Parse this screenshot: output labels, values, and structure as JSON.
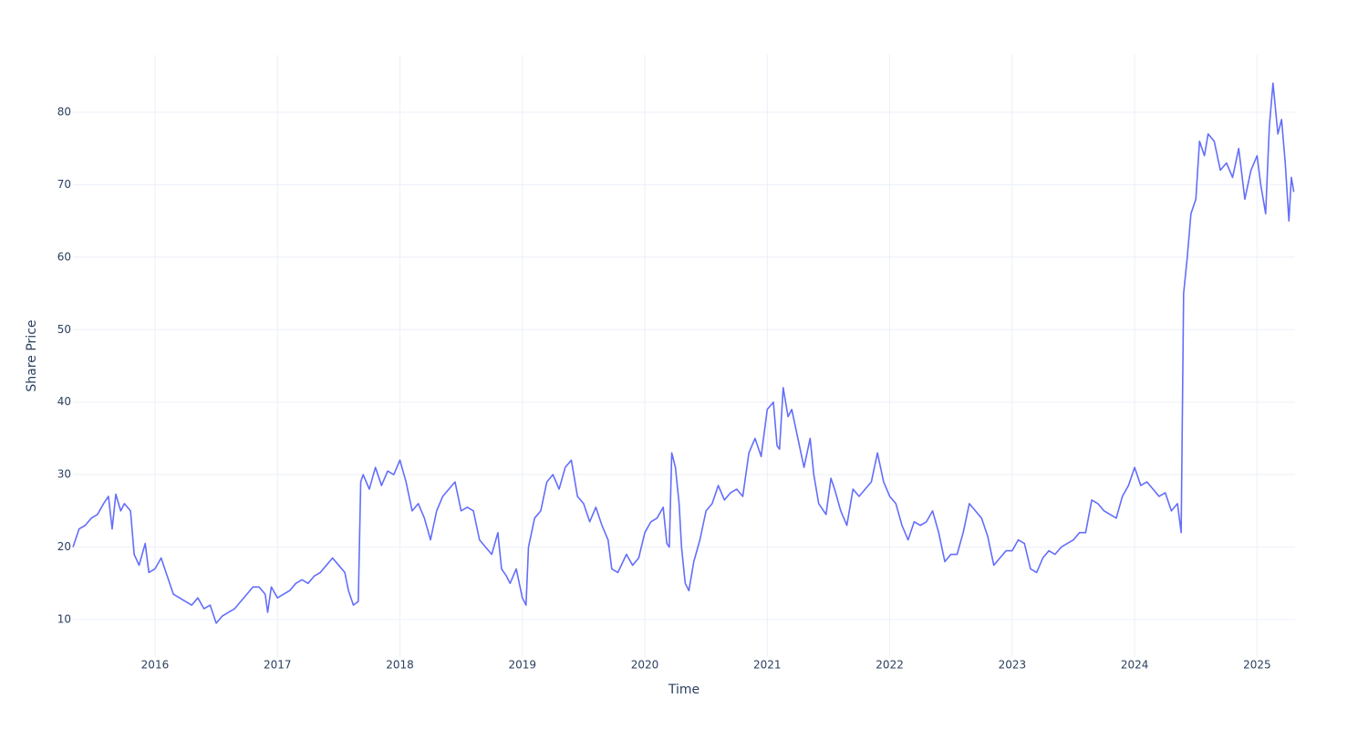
{
  "chart_data": {
    "type": "line",
    "x_label": "Time",
    "y_label": "Share Price",
    "color": "#636efa",
    "grid": true,
    "xlim": [
      2015.33,
      2025.31
    ],
    "xticks": [
      2016,
      2017,
      2018,
      2019,
      2020,
      2021,
      2022,
      2023,
      2024,
      2025
    ],
    "ylim": [
      4.84,
      87.93
    ],
    "yticks": [
      10,
      20,
      30,
      40,
      50,
      60,
      70,
      80
    ],
    "x": [
      2015.33,
      2015.38,
      2015.43,
      2015.48,
      2015.53,
      2015.58,
      2015.62,
      2015.65,
      2015.68,
      2015.72,
      2015.75,
      2015.8,
      2015.83,
      2015.87,
      2015.92,
      2015.95,
      2016.0,
      2016.05,
      2016.1,
      2016.15,
      2016.2,
      2016.25,
      2016.3,
      2016.35,
      2016.4,
      2016.45,
      2016.48,
      2016.5,
      2016.55,
      2016.6,
      2016.65,
      2016.7,
      2016.75,
      2016.8,
      2016.85,
      2016.9,
      2016.92,
      2016.95,
      2017.0,
      2017.05,
      2017.1,
      2017.15,
      2017.2,
      2017.25,
      2017.3,
      2017.35,
      2017.4,
      2017.45,
      2017.5,
      2017.55,
      2017.58,
      2017.62,
      2017.66,
      2017.68,
      2017.7,
      2017.75,
      2017.8,
      2017.85,
      2017.9,
      2017.95,
      2018.0,
      2018.05,
      2018.1,
      2018.15,
      2018.2,
      2018.25,
      2018.3,
      2018.35,
      2018.4,
      2018.45,
      2018.5,
      2018.55,
      2018.6,
      2018.65,
      2018.7,
      2018.75,
      2018.8,
      2018.83,
      2018.87,
      2018.9,
      2018.95,
      2019.0,
      2019.03,
      2019.05,
      2019.1,
      2019.15,
      2019.2,
      2019.25,
      2019.3,
      2019.35,
      2019.4,
      2019.45,
      2019.5,
      2019.55,
      2019.6,
      2019.65,
      2019.7,
      2019.73,
      2019.78,
      2019.85,
      2019.9,
      2019.95,
      2020.0,
      2020.05,
      2020.1,
      2020.15,
      2020.18,
      2020.2,
      2020.22,
      2020.25,
      2020.28,
      2020.3,
      2020.33,
      2020.36,
      2020.4,
      2020.45,
      2020.5,
      2020.55,
      2020.6,
      2020.65,
      2020.7,
      2020.75,
      2020.8,
      2020.85,
      2020.9,
      2020.95,
      2021.0,
      2021.05,
      2021.08,
      2021.1,
      2021.13,
      2021.17,
      2021.2,
      2021.25,
      2021.3,
      2021.35,
      2021.38,
      2021.42,
      2021.48,
      2021.52,
      2021.55,
      2021.6,
      2021.65,
      2021.7,
      2021.75,
      2021.8,
      2021.85,
      2021.9,
      2021.95,
      2022.0,
      2022.05,
      2022.1,
      2022.15,
      2022.2,
      2022.25,
      2022.3,
      2022.35,
      2022.4,
      2022.45,
      2022.5,
      2022.55,
      2022.6,
      2022.65,
      2022.7,
      2022.75,
      2022.8,
      2022.85,
      2022.9,
      2022.95,
      2023.0,
      2023.05,
      2023.1,
      2023.15,
      2023.2,
      2023.25,
      2023.3,
      2023.35,
      2023.4,
      2023.45,
      2023.5,
      2023.55,
      2023.6,
      2023.65,
      2023.7,
      2023.75,
      2023.8,
      2023.85,
      2023.9,
      2023.95,
      2024.0,
      2024.05,
      2024.1,
      2024.15,
      2024.2,
      2024.25,
      2024.3,
      2024.35,
      2024.38,
      2024.4,
      2024.43,
      2024.46,
      2024.5,
      2024.53,
      2024.57,
      2024.6,
      2024.65,
      2024.7,
      2024.75,
      2024.8,
      2024.85,
      2024.9,
      2024.95,
      2025.0,
      2025.03,
      2025.07,
      2025.1,
      2025.13,
      2025.17,
      2025.2,
      2025.23,
      2025.26,
      2025.28,
      2025.3
    ],
    "values": [
      20,
      22.5,
      23,
      24,
      24.5,
      26,
      27,
      22.5,
      27.3,
      25,
      26,
      25,
      19,
      17.5,
      20.5,
      16.5,
      17,
      18.5,
      16,
      13.5,
      13,
      12.5,
      12,
      13,
      11.5,
      12,
      10.5,
      9.5,
      10.5,
      11,
      11.5,
      12.5,
      13.5,
      14.5,
      14.5,
      13.5,
      11,
      14.5,
      13,
      13.5,
      14,
      15,
      15.5,
      15,
      16,
      16.5,
      17.5,
      18.5,
      17.5,
      16.5,
      14,
      12,
      12.5,
      29,
      30,
      28,
      31,
      28.5,
      30.5,
      30,
      32,
      29,
      25,
      26,
      24,
      21,
      25,
      27,
      28,
      29,
      25,
      25.5,
      25,
      21,
      20,
      19,
      22,
      17,
      16,
      15,
      17,
      13,
      12,
      20,
      24,
      25,
      29,
      30,
      28,
      31,
      32,
      27,
      26,
      23.5,
      25.5,
      23,
      21,
      17,
      16.5,
      19,
      17.5,
      18.5,
      22,
      23.5,
      24,
      25.5,
      20.5,
      20,
      33,
      31,
      26,
      20,
      15,
      14,
      18,
      21,
      25,
      26,
      28.5,
      26.5,
      27.5,
      28,
      27,
      33,
      35,
      32.5,
      39,
      40,
      34,
      33.5,
      42,
      38,
      39,
      35,
      31,
      35,
      30,
      26,
      24.5,
      29.5,
      28,
      25,
      23,
      28,
      27,
      28,
      29,
      33,
      29,
      27,
      26,
      23,
      21,
      23.5,
      23,
      23.5,
      25,
      22,
      18,
      19,
      19,
      22,
      26,
      25,
      24,
      21.5,
      17.5,
      18.5,
      19.5,
      19.5,
      21,
      20.5,
      17,
      16.5,
      18.5,
      19.5,
      19,
      20,
      20.5,
      21,
      22,
      22,
      26.5,
      26,
      25,
      24.5,
      24,
      27,
      28.5,
      31,
      28.5,
      29,
      28,
      27,
      27.5,
      25,
      26,
      22,
      55,
      60,
      66,
      68,
      76,
      74,
      77,
      76,
      72,
      73,
      71,
      75,
      68,
      72,
      74,
      70,
      66,
      78,
      84,
      77,
      79,
      73,
      65,
      71,
      69
    ]
  }
}
